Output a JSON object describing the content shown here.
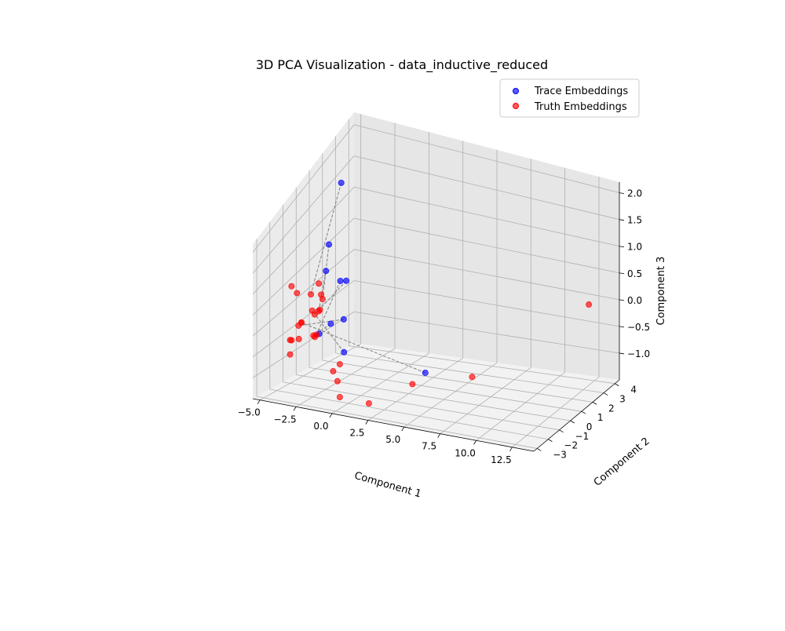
{
  "chart_data": {
    "type": "scatter",
    "projection": "3d",
    "title": "3D PCA Visualization - data_inductive_reduced",
    "xlabel": "Component 1",
    "ylabel": "Component 2",
    "zlabel": "Component 3",
    "xlim": [
      -5.5,
      14
    ],
    "ylim": [
      -3.3,
      4.4
    ],
    "zlim": [
      -1.5,
      2.2
    ],
    "xticks": [
      "−5.0",
      "−2.5",
      "0.0",
      "2.5",
      "5.0",
      "7.5",
      "10.0",
      "12.5"
    ],
    "yticks": [
      "−3",
      "−2",
      "−1",
      "0",
      "1",
      "2",
      "3",
      "4"
    ],
    "zticks": [
      "−1.0",
      "−0.5",
      "0.0",
      "0.5",
      "1.0",
      "1.5",
      "2.0"
    ],
    "grid": true,
    "legend_position": "top-right",
    "series": [
      {
        "name": "Trace Embeddings",
        "color": "#0000ff",
        "points": [
          [
            -3.4,
            1.2,
            2.0
          ],
          [
            -4.0,
            0.9,
            0.9
          ],
          [
            -2.3,
            0.4,
            0.4
          ],
          [
            -3.2,
            -0.2,
            0.7
          ],
          [
            -3.0,
            0.7,
            0.3
          ],
          [
            -3.5,
            0.5,
            -0.5
          ],
          [
            -2.1,
            0.0,
            -0.9
          ],
          [
            -3.4,
            -0.5,
            -0.5
          ],
          [
            -3.5,
            1.5,
            -0.6
          ],
          [
            2.1,
            1.8,
            -1.4
          ]
        ]
      },
      {
        "name": "Truth Embeddings",
        "color": "#ff0000",
        "points": [
          [
            -3.9,
            -0.6,
            0.3
          ],
          [
            -3.8,
            -0.1,
            0.4
          ],
          [
            -3.9,
            0.3,
            0.0
          ],
          [
            -4.0,
            0.1,
            -0.2
          ],
          [
            -4.0,
            -0.2,
            -0.2
          ],
          [
            -3.5,
            -0.6,
            -0.5
          ],
          [
            -5.2,
            0.9,
            -0.4
          ],
          [
            -4.0,
            -0.3,
            -0.6
          ],
          [
            -3.8,
            -0.4,
            -0.6
          ],
          [
            -4.5,
            -0.9,
            -0.3
          ],
          [
            -4.2,
            -1.0,
            -0.2
          ],
          [
            -4.2,
            -1.2,
            -0.5
          ],
          [
            -5.0,
            -1.0,
            -0.6
          ],
          [
            -5.0,
            -1.0,
            -0.9
          ],
          [
            -4.9,
            -1.0,
            -0.6
          ],
          [
            -3.8,
            -2.2,
            0.9
          ],
          [
            -3.6,
            -2.0,
            0.7
          ],
          [
            -2.0,
            -1.9,
            0.7
          ],
          [
            -2.0,
            -2.0,
            0.4
          ],
          [
            -3.2,
            -2.1,
            0.1
          ],
          [
            -0.6,
            -2.0,
            -0.7
          ],
          [
            -0.8,
            -2.3,
            -0.8
          ],
          [
            -0.5,
            -2.3,
            -1.0
          ],
          [
            -0.6,
            -2.0,
            -1.4
          ],
          [
            3.2,
            -0.5,
            -1.2
          ],
          [
            6.5,
            0.6,
            -1.1
          ],
          [
            2.3,
            -3.0,
            -1.2
          ],
          [
            12.5,
            3.5,
            0.0
          ]
        ]
      }
    ],
    "pairs": [
      [
        0,
        0
      ],
      [
        1,
        2
      ],
      [
        2,
        4
      ],
      [
        3,
        3
      ],
      [
        4,
        5
      ],
      [
        5,
        7
      ],
      [
        6,
        6
      ],
      [
        7,
        8
      ],
      [
        8,
        9
      ],
      [
        9,
        19
      ]
    ]
  }
}
